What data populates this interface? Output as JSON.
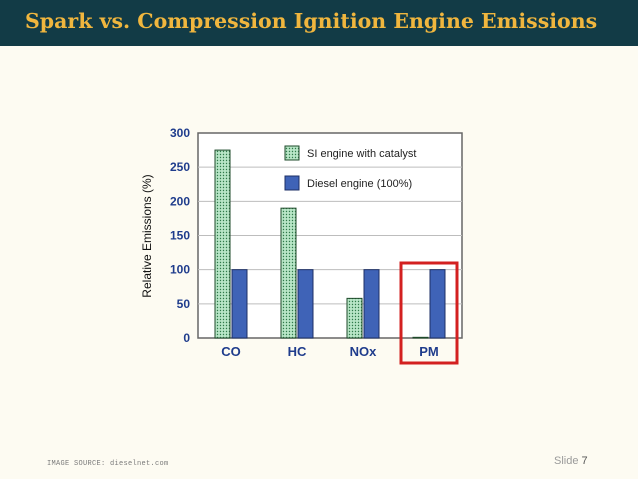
{
  "slide": {
    "title": "Spark vs. Compression Ignition Engine Emissions",
    "source": "IMAGE SOURCE: dieselnet.com",
    "slide_label": "Slide",
    "slide_number": "7"
  },
  "colors": {
    "title_bar": "#123b46",
    "title_text": "#f0b63e",
    "si_fill": "#b8e6c7",
    "diesel_fill": "#3f63b7",
    "highlight": "#d32020"
  },
  "chart_data": {
    "type": "bar",
    "categories": [
      "CO",
      "HC",
      "NOx",
      "PM"
    ],
    "series": [
      {
        "name": "SI engine with catalyst",
        "values": [
          275,
          190,
          58,
          1
        ]
      },
      {
        "name": "Diesel engine (100%)",
        "values": [
          100,
          100,
          100,
          100
        ]
      }
    ],
    "ylabel": "Relative Emissions (%)",
    "ylim": [
      0,
      300
    ],
    "yticks": [
      "0",
      "50",
      "100",
      "150",
      "200",
      "250",
      "300"
    ],
    "grid": true,
    "legend_position": "top-right",
    "highlighted_category": "PM"
  }
}
